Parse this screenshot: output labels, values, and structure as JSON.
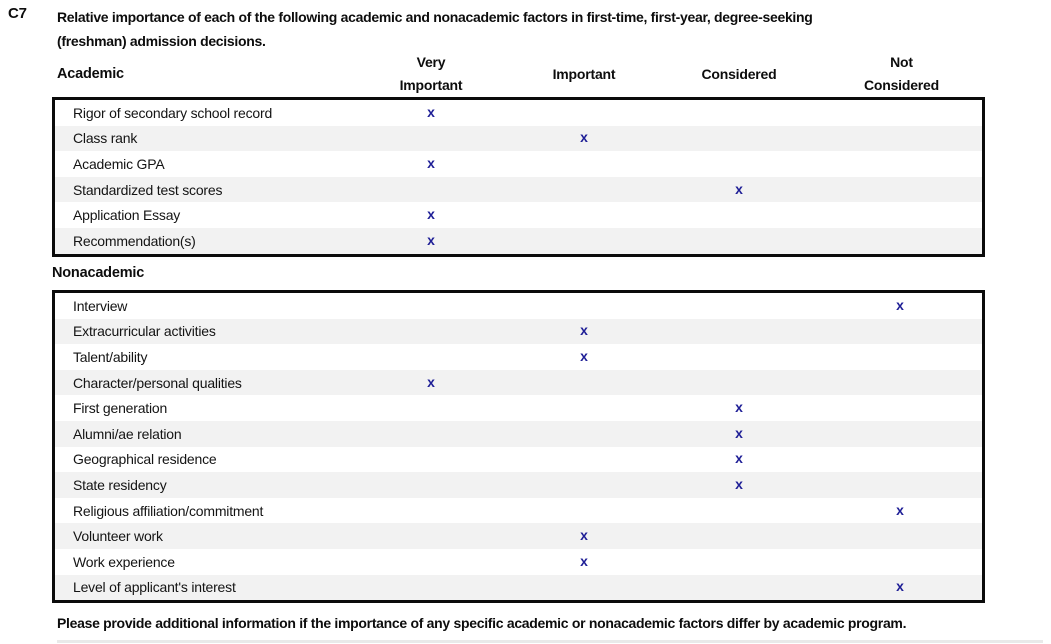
{
  "question": {
    "id": "C7",
    "title_lines": [
      "Relative importance of each of the following academic and nonacademic factors in first-time, first-year, degree-seeking",
      "(freshman) admission decisions."
    ]
  },
  "sections": {
    "academic_label": "Academic",
    "nonacademic_label": "Nonacademic"
  },
  "columns": {
    "levels": [
      "Very Important",
      "Important",
      "Considered",
      "Not Considered"
    ]
  },
  "mark_glyph": "x",
  "academic_rows": [
    {
      "label": "Rigor of secondary school record",
      "level": "Very Important"
    },
    {
      "label": "Class rank",
      "level": "Important"
    },
    {
      "label": "Academic GPA",
      "level": "Very Important"
    },
    {
      "label": "Standardized test scores",
      "level": "Considered"
    },
    {
      "label": "Application Essay",
      "level": "Very Important"
    },
    {
      "label": "Recommendation(s)",
      "level": "Very Important"
    }
  ],
  "nonacademic_rows": [
    {
      "label": "Interview",
      "level": "Not Considered"
    },
    {
      "label": "Extracurricular activities",
      "level": "Important"
    },
    {
      "label": "Talent/ability",
      "level": "Important"
    },
    {
      "label": "Character/personal qualities",
      "level": "Very Important"
    },
    {
      "label": "First generation",
      "level": "Considered"
    },
    {
      "label": "Alumni/ae relation",
      "level": "Considered"
    },
    {
      "label": "Geographical residence",
      "level": "Considered"
    },
    {
      "label": "State residency",
      "level": "Considered"
    },
    {
      "label": "Religious affiliation/commitment",
      "level": "Not Considered"
    },
    {
      "label": "Volunteer work",
      "level": "Important"
    },
    {
      "label": "Work experience",
      "level": "Important"
    },
    {
      "label": "Level of applicant's interest",
      "level": "Not Considered"
    }
  ],
  "footer_note": "Please provide additional information if the importance of any specific academic or nonacademic factors differ by academic program.",
  "colors": {
    "mark": "#1e1e96",
    "stripe": "#f2f2f2",
    "table_border": "#0b0b0b",
    "text": "#0d0d0d"
  }
}
